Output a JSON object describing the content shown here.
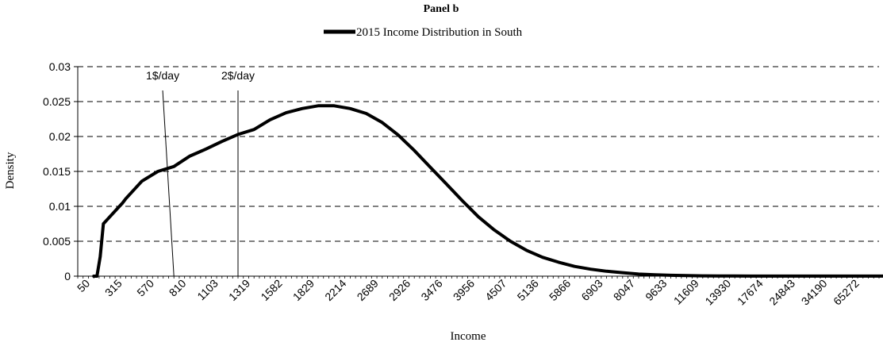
{
  "chart_data": {
    "type": "line",
    "title": "Panel b",
    "legend": {
      "position": "top",
      "entries": [
        {
          "label": "2015 Income Distribution in South",
          "color": "#000000"
        }
      ]
    },
    "xlabel": "Income",
    "ylabel": "Density",
    "ylim": [
      0,
      0.03
    ],
    "y_ticks": [
      "0",
      "0.005",
      "0.01",
      "0.015",
      "0.02",
      "0.025",
      "0.03"
    ],
    "y_tick_values": [
      0,
      0.005,
      0.01,
      0.015,
      0.02,
      0.025,
      0.03
    ],
    "grid": "horizontal-dashed",
    "x_ticks": [
      "50",
      "315",
      "570",
      "810",
      "1103",
      "1319",
      "1582",
      "1829",
      "2214",
      "2689",
      "2926",
      "3476",
      "3956",
      "4507",
      "5136",
      "5866",
      "6903",
      "8047",
      "9633",
      "11609",
      "13930",
      "17674",
      "24843",
      "34190",
      "65272"
    ],
    "series": [
      {
        "name": "2015 Income Distribution in South",
        "color": "#000000",
        "x_index": [
          0,
          0.1,
          0.2,
          0.3,
          0.5,
          0.7,
          0.9,
          1,
          1.5,
          2,
          2.5,
          3,
          3.3,
          3.5,
          4,
          4.5,
          5,
          5.5,
          6,
          6.5,
          7,
          7.5,
          8,
          8.5,
          9,
          9.5,
          10,
          10.5,
          11,
          11.5,
          12,
          12.5,
          13,
          13.5,
          14,
          14.5,
          15,
          15.5,
          16,
          16.5,
          17,
          17.5,
          18,
          18.5,
          19,
          19.5,
          20,
          20.5,
          21,
          21.5,
          22,
          22.5,
          23,
          23.5,
          24,
          24.5,
          25
        ],
        "values": [
          0.0,
          0.0,
          0.0028,
          0.0075,
          0.0085,
          0.0095,
          0.0105,
          0.0111,
          0.0136,
          0.015,
          0.0157,
          0.0172,
          0.0178,
          0.0182,
          0.0193,
          0.0203,
          0.021,
          0.0224,
          0.0234,
          0.024,
          0.0244,
          0.0244,
          0.024,
          0.0233,
          0.022,
          0.0202,
          0.018,
          0.0156,
          0.0132,
          0.0108,
          0.0085,
          0.0066,
          0.005,
          0.0037,
          0.0027,
          0.002,
          0.0014,
          0.001,
          0.0007,
          0.0005,
          0.0003,
          0.0002,
          0.00012,
          8e-05,
          5e-05,
          3e-05,
          2e-05,
          1.5e-05,
          1e-05,
          1e-05,
          1e-05,
          1e-05,
          1e-05,
          1e-05,
          1e-05,
          1e-05,
          1e-05
        ]
      }
    ],
    "annotations": [
      {
        "label": "1$/day",
        "x_top_index": 2.15,
        "x_bottom_index": 2.5
      },
      {
        "label": "2$/day",
        "x_top_index": 4.5,
        "x_bottom_index": 4.5
      }
    ]
  }
}
